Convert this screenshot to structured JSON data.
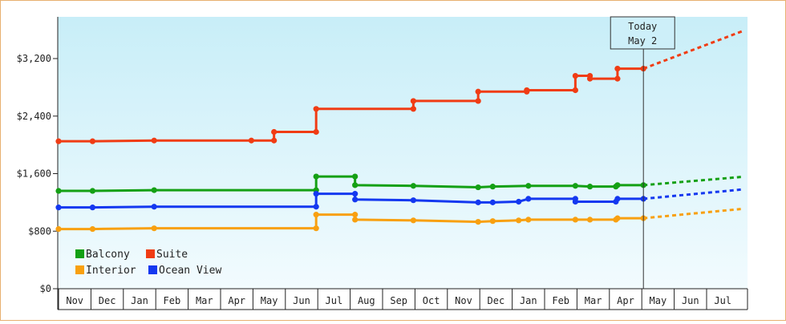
{
  "chart_data": {
    "type": "line",
    "step": true,
    "y_ticks": [
      "$3,200",
      "$2,400",
      "$1,600",
      "$800",
      "$0"
    ],
    "y_tick_values": [
      3200,
      2400,
      1600,
      800,
      0
    ],
    "ylim": [
      0,
      3780
    ],
    "x_start_month_index": 0,
    "months": [
      "Nov",
      "Dec",
      "Jan",
      "Feb",
      "Mar",
      "Apr",
      "May",
      "Jun",
      "Jul",
      "Aug",
      "Sep",
      "Oct",
      "Nov",
      "Dec",
      "Jan",
      "Feb",
      "Mar",
      "Apr",
      "May",
      "Jun",
      "Jul"
    ],
    "today": {
      "label_line1": "Today",
      "label_line2": "May 2",
      "x": 18.05
    },
    "legend_placement": "bottom-left",
    "grid": false,
    "background": "light-blue gradient",
    "series": [
      {
        "name": "Balcony",
        "color": "#14a014",
        "points": [
          [
            0,
            1360
          ],
          [
            1.05,
            1360
          ],
          [
            2.95,
            1370
          ],
          [
            7.95,
            1370
          ],
          [
            7.95,
            1560
          ],
          [
            9.15,
            1560
          ],
          [
            9.15,
            1440
          ],
          [
            10.95,
            1430
          ],
          [
            12.95,
            1410
          ],
          [
            13.4,
            1420
          ],
          [
            14.5,
            1430
          ],
          [
            15.95,
            1430
          ],
          [
            16.4,
            1420
          ],
          [
            17.2,
            1420
          ],
          [
            17.25,
            1440
          ],
          [
            18.05,
            1440
          ]
        ],
        "forecast": [
          [
            18.05,
            1440
          ],
          [
            21.1,
            1555
          ]
        ]
      },
      {
        "name": "Suite",
        "color": "#f03c14",
        "points": [
          [
            0,
            2050
          ],
          [
            1.05,
            2050
          ],
          [
            2.95,
            2060
          ],
          [
            5.95,
            2060
          ],
          [
            6.65,
            2060
          ],
          [
            6.65,
            2180
          ],
          [
            7.95,
            2180
          ],
          [
            7.95,
            2500
          ],
          [
            10.95,
            2500
          ],
          [
            10.95,
            2610
          ],
          [
            12.95,
            2610
          ],
          [
            12.95,
            2740
          ],
          [
            14.45,
            2740
          ],
          [
            14.45,
            2760
          ],
          [
            15.95,
            2760
          ],
          [
            15.95,
            2960
          ],
          [
            16.4,
            2960
          ],
          [
            16.4,
            2920
          ],
          [
            17.25,
            2920
          ],
          [
            17.25,
            3060
          ],
          [
            18.05,
            3060
          ]
        ],
        "forecast": [
          [
            18.05,
            3060
          ],
          [
            21.1,
            3580
          ]
        ]
      },
      {
        "name": "Interior",
        "color": "#f8a010",
        "points": [
          [
            0,
            830
          ],
          [
            1.05,
            830
          ],
          [
            2.95,
            840
          ],
          [
            7.95,
            840
          ],
          [
            7.95,
            1030
          ],
          [
            9.15,
            1030
          ],
          [
            9.15,
            960
          ],
          [
            10.95,
            950
          ],
          [
            12.95,
            930
          ],
          [
            13.4,
            940
          ],
          [
            14.2,
            950
          ],
          [
            14.5,
            960
          ],
          [
            15.95,
            960
          ],
          [
            16.4,
            960
          ],
          [
            17.2,
            960
          ],
          [
            17.25,
            980
          ],
          [
            18.05,
            980
          ]
        ],
        "forecast": [
          [
            18.05,
            980
          ],
          [
            21.1,
            1110
          ]
        ]
      },
      {
        "name": "Ocean View",
        "color": "#1438f0",
        "points": [
          [
            0,
            1130
          ],
          [
            1.05,
            1130
          ],
          [
            2.95,
            1140
          ],
          [
            7.95,
            1140
          ],
          [
            7.95,
            1320
          ],
          [
            9.15,
            1320
          ],
          [
            9.15,
            1240
          ],
          [
            10.95,
            1230
          ],
          [
            12.95,
            1200
          ],
          [
            13.4,
            1200
          ],
          [
            14.2,
            1210
          ],
          [
            14.5,
            1250
          ],
          [
            15.95,
            1250
          ],
          [
            15.95,
            1210
          ],
          [
            17.2,
            1210
          ],
          [
            17.25,
            1250
          ],
          [
            18.05,
            1250
          ]
        ],
        "forecast": [
          [
            18.05,
            1250
          ],
          [
            21.1,
            1380
          ]
        ]
      }
    ]
  }
}
